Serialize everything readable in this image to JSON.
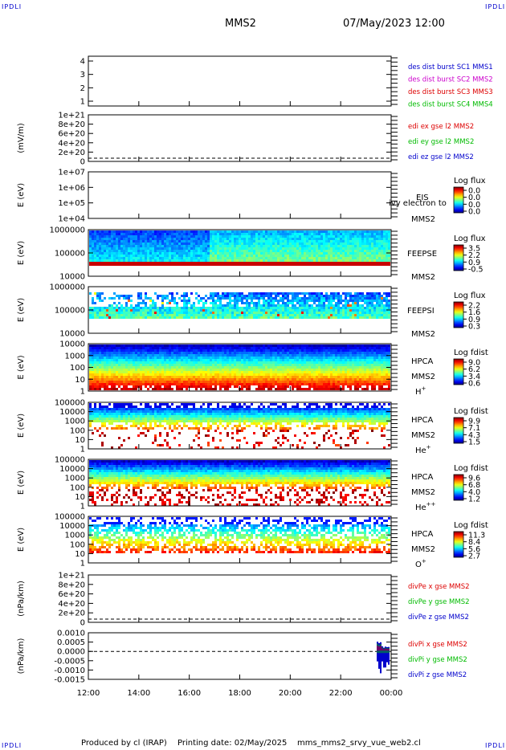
{
  "corners": {
    "label": "IPDLI",
    "color": "#0000cc"
  },
  "header": {
    "title": "MMS2",
    "datetime": "07/May/2023 12:00"
  },
  "footer": {
    "producer": "Produced by cl (IRAP)",
    "printing": "Printing date: 02/May/2025",
    "script": "mms_mms2_srvy_vue_web2.cl"
  },
  "colors": {
    "red": "#dd0000",
    "green": "#00bb00",
    "blue": "#0000cc",
    "magenta": "#cc00cc"
  },
  "chart_data": {
    "type": "heatmap",
    "time_axis": {
      "tick_labels": [
        "12:00",
        "14:00",
        "16:00",
        "18:00",
        "20:00",
        "22:00",
        "00:00"
      ],
      "range_hours": [
        12,
        24
      ]
    },
    "panels": [
      {
        "id": "p1",
        "kind": "empty",
        "ylabel": "",
        "yticks": [
          "4",
          "3",
          "2",
          "1"
        ],
        "legend": [
          {
            "text": "des dist burst SC1 MMS1",
            "color": "#0000cc"
          },
          {
            "text": "des dist burst SC2 MMS2",
            "color": "#cc00cc"
          },
          {
            "text": "des dist burst SC3 MMS3",
            "color": "#dd0000"
          },
          {
            "text": "des dist burst SC4 MMS4",
            "color": "#00bb00"
          }
        ]
      },
      {
        "id": "p2",
        "kind": "line",
        "ylabel": "(mV/m)",
        "yticks": [
          "1e+21",
          "8e+20",
          "6e+20",
          "4e+20",
          "2e+20",
          "0"
        ],
        "zero_line": true,
        "legend": [
          {
            "text": "edi ex gse l2 MMS2",
            "color": "#dd0000"
          },
          {
            "text": "edi ey gse l2 MMS2",
            "color": "#00bb00"
          },
          {
            "text": "edi ez gse l2 MMS2",
            "color": "#0000cc"
          }
        ]
      },
      {
        "id": "p3",
        "kind": "spectrogram_empty",
        "ylabel": "E (eV)",
        "yticks": [
          "1e+07",
          "1e+06",
          "1e+05",
          "1e+04"
        ],
        "instrument": [
          "EIS",
          "",
          "MMS2"
        ],
        "overlay": "ivy electron to",
        "colorbar": {
          "title": "Log flux",
          "ticks": [
            "0.0",
            "0.0",
            "0.0",
            "0.0"
          ]
        }
      },
      {
        "id": "p4",
        "kind": "spectrogram",
        "ylabel": "E (eV)",
        "yticks": [
          "1000000",
          "100000",
          "10000"
        ],
        "instrument": [
          "",
          "FEEPSE",
          "",
          "MMS2"
        ],
        "colorbar": {
          "title": "Log flux",
          "ticks": [
            "3.5",
            "2.2",
            "0.9",
            "-0.5"
          ]
        }
      },
      {
        "id": "p5",
        "kind": "spectrogram",
        "ylabel": "E (eV)",
        "yticks": [
          "1000000",
          "100000",
          "10000"
        ],
        "instrument": [
          "",
          "FEEPSI",
          "",
          "MMS2"
        ],
        "colorbar": {
          "title": "Log flux",
          "ticks": [
            "2.2",
            "1.6",
            "0.9",
            "0.3"
          ]
        }
      },
      {
        "id": "p6",
        "kind": "spectrogram",
        "ylabel": "E (eV)",
        "yticks": [
          "10000",
          "1000",
          "100",
          "10",
          "1"
        ],
        "instrument": [
          "HPCA",
          "MMS2"
        ],
        "species": "H",
        "species_sup": "+",
        "colorbar": {
          "title": "Log fdist",
          "ticks": [
            "9.0",
            "6.2",
            "3.4",
            "0.6"
          ]
        }
      },
      {
        "id": "p7",
        "kind": "spectrogram",
        "ylabel": "E (eV)",
        "yticks": [
          "100000",
          "10000",
          "1000",
          "100",
          "10",
          "1"
        ],
        "instrument": [
          "HPCA",
          "MMS2"
        ],
        "species": "He",
        "species_sup": "+",
        "colorbar": {
          "title": "Log fdist",
          "ticks": [
            "9.9",
            "7.1",
            "4.3",
            "1.5"
          ]
        }
      },
      {
        "id": "p8",
        "kind": "spectrogram",
        "ylabel": "E (eV)",
        "yticks": [
          "100000",
          "10000",
          "1000",
          "100",
          "10",
          "1"
        ],
        "instrument": [
          "HPCA",
          "MMS2"
        ],
        "species": "He",
        "species_sup": "++",
        "colorbar": {
          "title": "Log fdist",
          "ticks": [
            "9.6",
            "6.8",
            "4.0",
            "1.2"
          ]
        }
      },
      {
        "id": "p9",
        "kind": "spectrogram",
        "ylabel": "E (eV)",
        "yticks": [
          "100000",
          "10000",
          "1000",
          "100",
          "10",
          "1"
        ],
        "instrument": [
          "HPCA",
          "MMS2"
        ],
        "species": "O",
        "species_sup": "+",
        "colorbar": {
          "title": "Log fdist",
          "ticks": [
            "11.3",
            "8.4",
            "5.6",
            "2.7"
          ]
        }
      },
      {
        "id": "p10",
        "kind": "line",
        "ylabel": "(nPa/km)",
        "yticks": [
          "1e+21",
          "8e+20",
          "6e+20",
          "4e+20",
          "2e+20",
          "0"
        ],
        "zero_line": true,
        "legend": [
          {
            "text": "divPe x gse MMS2",
            "color": "#dd0000"
          },
          {
            "text": "divPe y gse MMS2",
            "color": "#00bb00"
          },
          {
            "text": "divPe z gse MMS2",
            "color": "#0000cc"
          }
        ]
      },
      {
        "id": "p11",
        "kind": "line",
        "ylabel": "(nPa/km)",
        "yticks": [
          "0.0010",
          "0.0005",
          "0.0000",
          "-0.0005",
          "-0.0010",
          "-0.0015"
        ],
        "zero_line": true,
        "legend": [
          {
            "text": "divPi x gse MMS2",
            "color": "#dd0000"
          },
          {
            "text": "divPi y gse MMS2",
            "color": "#00bb00"
          },
          {
            "text": "divPi z gse MMS2",
            "color": "#0000cc"
          }
        ]
      }
    ]
  }
}
